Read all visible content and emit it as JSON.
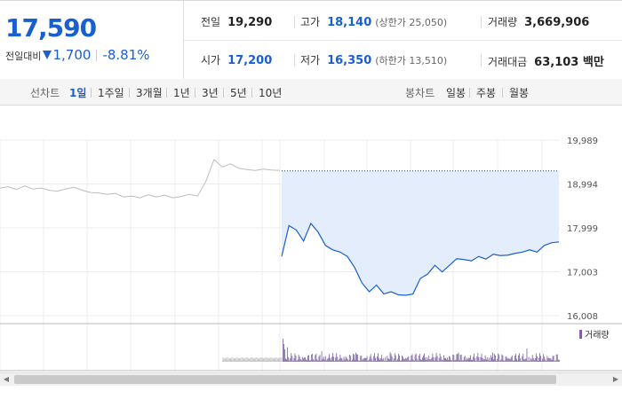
{
  "summary": {
    "price": "17,590",
    "change_label": "전일대비",
    "change_value": "1,700",
    "change_pct": "-8.81%",
    "prev_close_label": "전일",
    "prev_close": "19,290",
    "high_label": "고가",
    "high": "18,140",
    "upper_limit": "(상한가 25,050)",
    "volume_label": "거래량",
    "volume": "3,669,906",
    "open_label": "시가",
    "open": "17,200",
    "low_label": "저가",
    "low": "16,350",
    "lower_limit": "(하한가 13,510)",
    "amount_label": "거래대금",
    "amount": "63,103 백만"
  },
  "tabs": {
    "line_group": "선차트",
    "line": [
      "1일",
      "1주일",
      "3개월",
      "1년",
      "3년",
      "5년",
      "10년"
    ],
    "candle_group": "봉차트",
    "candle": [
      "일봉",
      "주봉",
      "월봉"
    ]
  },
  "colors": {
    "accent": "#1a5fd0",
    "fill": "#e3edfb",
    "prev_line": "#bdbdbd",
    "volume": "#7b5fa0"
  },
  "chart_data": {
    "type": "line",
    "y_ticks": [
      "19,989",
      "18,994",
      "17,999",
      "17,003",
      "16,008"
    ],
    "ylim": [
      16008,
      19989
    ],
    "prev_close_ref": 19290,
    "legend": "거래량",
    "prev_day_series": [
      18900,
      18930,
      18870,
      18950,
      18880,
      18900,
      18850,
      18830,
      18880,
      18920,
      18850,
      18800,
      18790,
      18760,
      18780,
      18700,
      18720,
      18680,
      18750,
      18700,
      18740,
      18680,
      18710,
      18760,
      18720,
      19050,
      19550,
      19380,
      19450,
      19350,
      19320,
      19300,
      19330,
      19310,
      19300
    ],
    "today_series": [
      17350,
      18050,
      17950,
      17700,
      18100,
      17900,
      17600,
      17500,
      17450,
      17350,
      17100,
      16750,
      16550,
      16700,
      16500,
      16550,
      16480,
      16470,
      16500,
      16850,
      16950,
      17150,
      17000,
      17150,
      17300,
      17280,
      17250,
      17350,
      17290,
      17400,
      17370,
      17380,
      17420,
      17450,
      17500,
      17450,
      17600,
      17660,
      17680
    ]
  }
}
